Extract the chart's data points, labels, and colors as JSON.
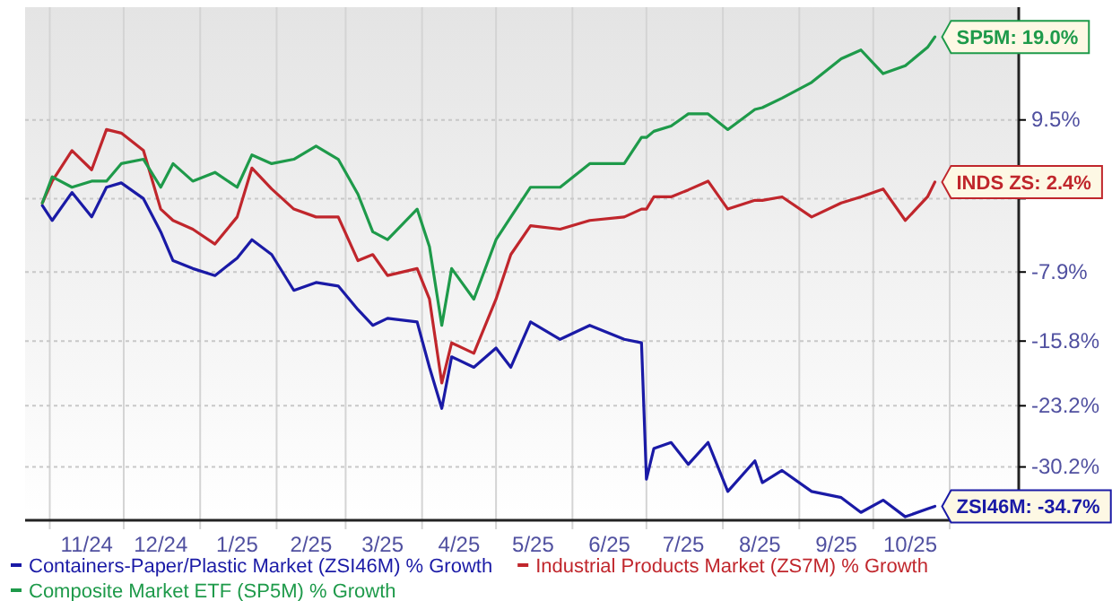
{
  "chart_data": {
    "type": "line",
    "grid": true,
    "legend": "bottom",
    "x": [
      "2024-10-29",
      "2024-11-02",
      "2024-11-10",
      "2024-11-18",
      "2024-11-24",
      "2024-11-30",
      "2024-12-09",
      "2024-12-16",
      "2024-12-21",
      "2024-12-29",
      "2025-01-07",
      "2025-01-16",
      "2025-01-22",
      "2025-01-30",
      "2025-02-08",
      "2025-02-17",
      "2025-02-26",
      "2025-03-06",
      "2025-03-12",
      "2025-03-18",
      "2025-03-30",
      "2025-04-04",
      "2025-04-09",
      "2025-04-13",
      "2025-04-22",
      "2025-05-01",
      "2025-05-07",
      "2025-05-15",
      "2025-05-27",
      "2025-06-08",
      "2025-06-22",
      "2025-06-29",
      "2025-07-01",
      "2025-07-04",
      "2025-07-11",
      "2025-07-18",
      "2025-07-26",
      "2025-08-03",
      "2025-08-14",
      "2025-08-17",
      "2025-08-25",
      "2025-09-06",
      "2025-09-18",
      "2025-09-26",
      "2025-10-05",
      "2025-10-14",
      "2025-10-23",
      "2025-10-26"
    ],
    "series": [
      {
        "name": "Containers-Paper/Plastic Market (ZSI46M) % Growth",
        "color": "#1a1aa6",
        "values": [
          -0.3,
          -2,
          1.2,
          -1.6,
          1.8,
          2.3,
          0.5,
          -3.3,
          -6.6,
          -7.5,
          -8.3,
          -6.3,
          -4.2,
          -5.9,
          -10,
          -9.1,
          -9.5,
          -12.2,
          -14,
          -13.2,
          -13.6,
          -18.8,
          -23.5,
          -17.6,
          -18.8,
          -16.6,
          -18.8,
          -13.6,
          -15.6,
          -14,
          -15.6,
          -16,
          -31.6,
          -28.1,
          -27.4,
          -29.9,
          -27.4,
          -33,
          -29.5,
          -32,
          -30.6,
          -33,
          -33.7,
          -35.4,
          -34,
          -35.9,
          -35,
          -34.7
        ]
      },
      {
        "name": "Industrial Products Market (ZS7M) % Growth",
        "color": "#c0262c",
        "values": [
          0,
          2.5,
          6,
          3.8,
          8.4,
          8,
          6,
          -0.7,
          -2,
          -3,
          -4.7,
          -1.6,
          4,
          1.6,
          -0.7,
          -1.6,
          -1.6,
          -6.6,
          -5.9,
          -8.3,
          -7.5,
          -11,
          -20.6,
          -16,
          -17.2,
          -11,
          -5.9,
          -2.6,
          -3,
          -2,
          -1.6,
          -0.7,
          -0.7,
          0.7,
          0.7,
          1.5,
          2.5,
          -0.7,
          0.3,
          0.3,
          0.7,
          -1.6,
          0,
          0.7,
          1.6,
          -2,
          0.7,
          2.4
        ]
      },
      {
        "name": "Composite Market ETF (SP5M) % Growth",
        "color": "#1e9a4a",
        "values": [
          0,
          3,
          1.8,
          2.5,
          2.5,
          4.5,
          5,
          1.8,
          4.5,
          2.5,
          3.5,
          1.8,
          5.5,
          4.5,
          5,
          6.5,
          5,
          1,
          -3.3,
          -4.2,
          -0.7,
          -5,
          -14,
          -7.5,
          -11,
          -4.2,
          -1.6,
          1.8,
          1.8,
          4.5,
          4.5,
          7.5,
          7.5,
          8.2,
          8.8,
          10.2,
          10.2,
          8.4,
          10.7,
          10.9,
          12,
          13.8,
          16.5,
          17.5,
          14.8,
          15.7,
          17.8,
          19.0
        ]
      }
    ],
    "xlim": [
      "2024-10-22",
      "2025-11-29"
    ],
    "xticks": [
      {
        "value": "2024-11-16",
        "label": "11/24"
      },
      {
        "value": "2024-12-16",
        "label": "12/24"
      },
      {
        "value": "2025-01-16",
        "label": "1/25"
      },
      {
        "value": "2025-02-15",
        "label": "2/25"
      },
      {
        "value": "2025-03-16",
        "label": "3/25"
      },
      {
        "value": "2025-04-16",
        "label": "4/25"
      },
      {
        "value": "2025-05-16",
        "label": "5/25"
      },
      {
        "value": "2025-06-16",
        "label": "6/25"
      },
      {
        "value": "2025-07-16",
        "label": "7/25"
      },
      {
        "value": "2025-08-16",
        "label": "8/25"
      },
      {
        "value": "2025-09-16",
        "label": "9/25"
      },
      {
        "value": "2025-10-16",
        "label": "10/25"
      }
    ],
    "ylim": [
      -36.3,
      22.4
    ],
    "yticks": [
      {
        "value": 9.5,
        "label": "9.5%"
      },
      {
        "value": 0.5,
        "label": null
      },
      {
        "value": -7.9,
        "label": "-7.9%"
      },
      {
        "value": -15.8,
        "label": "-15.8%"
      },
      {
        "value": -23.2,
        "label": "-23.2%"
      },
      {
        "value": -30.2,
        "label": "-30.2%"
      }
    ],
    "annotations": [
      {
        "text": "ZSI46M: -34.7%",
        "x": "2025-10-26",
        "y": -34.7
      },
      {
        "text": "INDS ZS: 2.4%",
        "x": "2025-10-26",
        "y": 2.4
      },
      {
        "text": "SP5M: 19.0%",
        "x": "2025-10-26",
        "y": 19.0
      }
    ]
  }
}
